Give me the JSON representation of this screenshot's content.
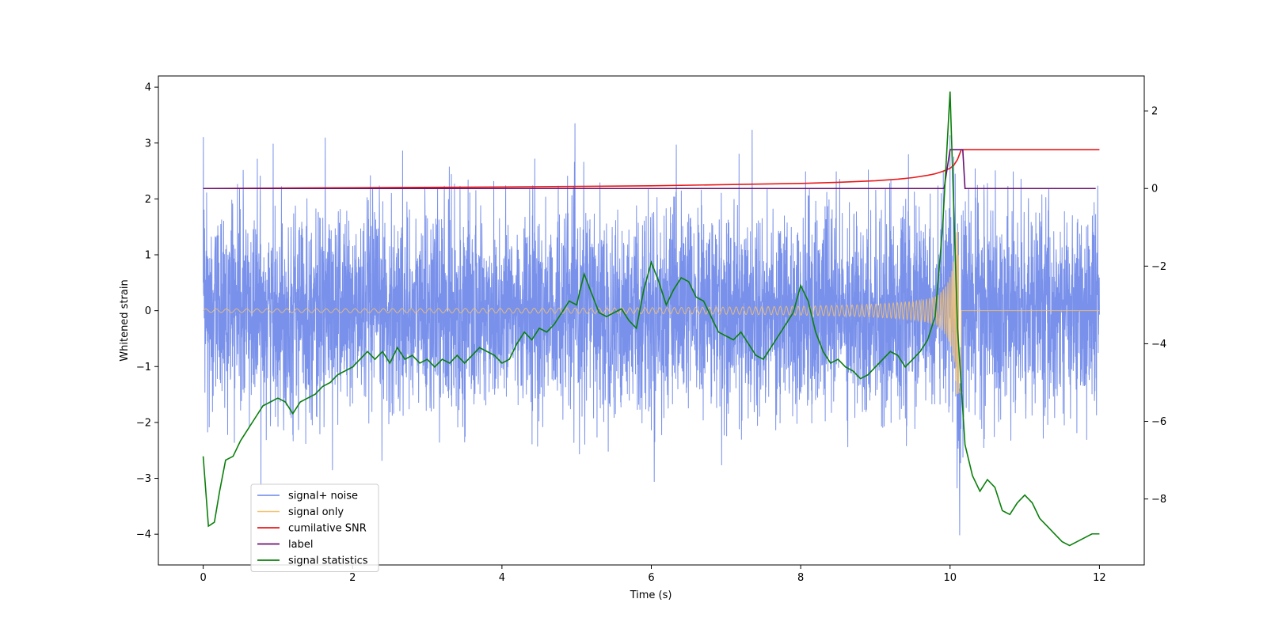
{
  "chart_data": {
    "type": "line",
    "title": "",
    "xlabel": "Time (s)",
    "ylabel": "Whitened strain",
    "xlim": [
      -0.6,
      12.6
    ],
    "ylim_left": [
      -4.55,
      4.2
    ],
    "ylim_right": [
      -9.7,
      2.9
    ],
    "xticks": [
      0,
      2,
      4,
      6,
      8,
      10,
      12
    ],
    "xtick_labels": [
      "0",
      "2",
      "4",
      "6",
      "8",
      "10",
      "12"
    ],
    "yticks_left": [
      -4,
      -3,
      -2,
      -1,
      0,
      1,
      2,
      3,
      4
    ],
    "ytick_labels_left": [
      "−4",
      "−3",
      "−2",
      "−1",
      "0",
      "1",
      "2",
      "3",
      "4"
    ],
    "yticks_right": [
      -8,
      -6,
      -4,
      -2,
      0,
      2
    ],
    "ytick_labels_right": [
      "−8",
      "−6",
      "−4",
      "−2",
      "0",
      "2"
    ],
    "grid": false,
    "legend_position": "lower-left",
    "colors": {
      "signal_noise": "#6a85e8",
      "signal_only": "#f5c170",
      "cumulative_snr": "#e8191b",
      "label": "#6a0f73",
      "signal_statistics": "#0b7f0b"
    },
    "legend": [
      "signal+ noise",
      "signal only",
      "cumilative SNR",
      "label",
      "signal statistics"
    ],
    "series": [
      {
        "name": "signal+ noise",
        "axis": "left",
        "description": "dense whitened noise, roughly N(0, 0.9), t = 0..12 s",
        "x_range": [
          0,
          12
        ],
        "std": 0.9
      },
      {
        "name": "signal only",
        "axis": "left",
        "description": "chirp waveform, amplitude ~0.03 growing to ~1.4 near merger at t = 10.1 s",
        "x_range": [
          0,
          12
        ],
        "merger_time": 10.12
      },
      {
        "name": "cumilative SNR",
        "axis": "right",
        "x": [
          0,
          2,
          4,
          6,
          7,
          8,
          8.5,
          9,
          9.3,
          9.5,
          9.7,
          9.8,
          9.9,
          10.0,
          10.05,
          10.1,
          10.15,
          12.0
        ],
        "y": [
          0.0,
          0.02,
          0.04,
          0.07,
          0.1,
          0.13,
          0.16,
          0.2,
          0.24,
          0.28,
          0.34,
          0.38,
          0.44,
          0.52,
          0.6,
          0.75,
          1.0,
          1.0
        ]
      },
      {
        "name": "label",
        "axis": "right",
        "x": [
          0,
          9.92,
          10.0,
          10.17,
          10.2,
          11.95
        ],
        "y": [
          0,
          0,
          1,
          1,
          0,
          0
        ]
      },
      {
        "name": "signal statistics",
        "axis": "right",
        "x": [
          0,
          0.07,
          0.15,
          0.22,
          0.3,
          0.4,
          0.5,
          0.6,
          0.7,
          0.8,
          0.9,
          1.0,
          1.1,
          1.2,
          1.3,
          1.4,
          1.5,
          1.6,
          1.7,
          1.8,
          1.9,
          2.0,
          2.1,
          2.2,
          2.3,
          2.4,
          2.5,
          2.6,
          2.7,
          2.8,
          2.9,
          3.0,
          3.1,
          3.2,
          3.3,
          3.4,
          3.5,
          3.6,
          3.7,
          3.8,
          3.9,
          4.0,
          4.1,
          4.2,
          4.3,
          4.4,
          4.5,
          4.6,
          4.7,
          4.8,
          4.9,
          5.0,
          5.1,
          5.2,
          5.3,
          5.4,
          5.5,
          5.6,
          5.7,
          5.8,
          5.9,
          6.0,
          6.1,
          6.2,
          6.3,
          6.4,
          6.5,
          6.6,
          6.7,
          6.8,
          6.9,
          7.0,
          7.1,
          7.2,
          7.3,
          7.4,
          7.5,
          7.6,
          7.7,
          7.8,
          7.9,
          8.0,
          8.1,
          8.2,
          8.3,
          8.4,
          8.5,
          8.6,
          8.7,
          8.8,
          8.9,
          9.0,
          9.1,
          9.2,
          9.3,
          9.4,
          9.5,
          9.6,
          9.7,
          9.8,
          9.9,
          10.0,
          10.1,
          10.2,
          10.3,
          10.4,
          10.5,
          10.6,
          10.7,
          10.8,
          10.9,
          11.0,
          11.1,
          11.2,
          11.3,
          11.4,
          11.5,
          11.6,
          11.7,
          11.8,
          11.9,
          12.0
        ],
        "y": [
          -6.9,
          -8.7,
          -8.6,
          -7.8,
          -7.0,
          -6.9,
          -6.5,
          -6.2,
          -5.9,
          -5.6,
          -5.5,
          -5.4,
          -5.5,
          -5.8,
          -5.5,
          -5.4,
          -5.3,
          -5.1,
          -5.0,
          -4.8,
          -4.7,
          -4.6,
          -4.4,
          -4.2,
          -4.4,
          -4.2,
          -4.5,
          -4.1,
          -4.4,
          -4.3,
          -4.5,
          -4.4,
          -4.6,
          -4.4,
          -4.5,
          -4.3,
          -4.5,
          -4.3,
          -4.1,
          -4.2,
          -4.3,
          -4.5,
          -4.4,
          -4.0,
          -3.7,
          -3.9,
          -3.6,
          -3.7,
          -3.5,
          -3.2,
          -2.9,
          -3.0,
          -2.2,
          -2.7,
          -3.2,
          -3.3,
          -3.2,
          -3.1,
          -3.4,
          -3.6,
          -2.6,
          -1.9,
          -2.4,
          -3.0,
          -2.6,
          -2.3,
          -2.4,
          -2.8,
          -2.9,
          -3.3,
          -3.7,
          -3.8,
          -3.9,
          -3.7,
          -4.0,
          -4.3,
          -4.4,
          -4.1,
          -3.8,
          -3.5,
          -3.2,
          -2.5,
          -2.9,
          -3.7,
          -4.2,
          -4.5,
          -4.4,
          -4.6,
          -4.7,
          -4.9,
          -4.8,
          -4.6,
          -4.4,
          -4.2,
          -4.3,
          -4.6,
          -4.4,
          -4.2,
          -3.9,
          -3.3,
          -1.0,
          2.5,
          -3.6,
          -6.6,
          -7.4,
          -7.8,
          -7.5,
          -7.7,
          -8.3,
          -8.4,
          -8.1,
          -7.9,
          -8.1,
          -8.5,
          -8.7,
          -8.9,
          -9.1,
          -9.2,
          -9.1,
          -9.0,
          -8.9,
          -8.9
        ]
      }
    ]
  }
}
